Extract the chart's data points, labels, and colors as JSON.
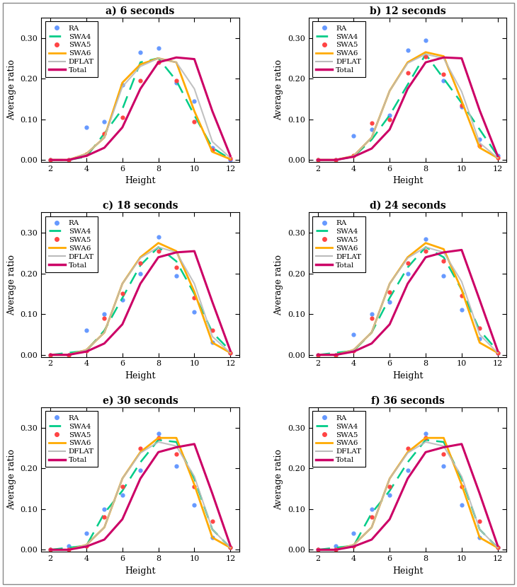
{
  "titles": [
    "a) 6 seconds",
    "b) 12 seconds",
    "c) 18 seconds",
    "d) 24 seconds",
    "e) 30 seconds",
    "f) 36 seconds"
  ],
  "x": [
    2,
    3,
    4,
    5,
    6,
    7,
    8,
    9,
    10,
    11,
    12
  ],
  "series": {
    "RA": {
      "color": "#6699ff",
      "data": [
        [
          0.0,
          0.0,
          0.08,
          0.095,
          0.185,
          0.265,
          0.275,
          0.19,
          0.145,
          0.03,
          0.0
        ],
        [
          0.0,
          0.0,
          0.06,
          0.075,
          0.11,
          0.27,
          0.295,
          0.195,
          0.13,
          0.05,
          0.01
        ],
        [
          0.0,
          0.0,
          0.06,
          0.1,
          0.135,
          0.2,
          0.29,
          0.195,
          0.105,
          0.03,
          0.005
        ],
        [
          0.0,
          0.0,
          0.05,
          0.1,
          0.13,
          0.2,
          0.285,
          0.195,
          0.11,
          0.04,
          0.005
        ],
        [
          0.0,
          0.01,
          0.04,
          0.1,
          0.135,
          0.195,
          0.285,
          0.205,
          0.11,
          0.03,
          0.005
        ],
        [
          0.0,
          0.01,
          0.04,
          0.1,
          0.135,
          0.195,
          0.285,
          0.205,
          0.11,
          0.03,
          0.005
        ]
      ]
    },
    "SWA4": {
      "color": "#00cc88",
      "data": [
        [
          0.0,
          0.0,
          0.008,
          0.065,
          0.125,
          0.24,
          0.25,
          0.195,
          0.11,
          0.03,
          0.002
        ],
        [
          0.0,
          0.0,
          0.008,
          0.05,
          0.11,
          0.185,
          0.26,
          0.2,
          0.14,
          0.075,
          0.01
        ],
        [
          0.0,
          0.005,
          0.01,
          0.06,
          0.14,
          0.22,
          0.265,
          0.23,
          0.15,
          0.055,
          0.01
        ],
        [
          0.0,
          0.005,
          0.01,
          0.055,
          0.14,
          0.215,
          0.265,
          0.24,
          0.16,
          0.06,
          0.01
        ],
        [
          0.0,
          0.005,
          0.01,
          0.09,
          0.145,
          0.215,
          0.27,
          0.265,
          0.175,
          0.05,
          0.005
        ],
        [
          0.0,
          0.005,
          0.01,
          0.09,
          0.145,
          0.215,
          0.27,
          0.265,
          0.175,
          0.05,
          0.005
        ]
      ]
    },
    "SWA5": {
      "color": "#ff4444",
      "data": [
        [
          0.0,
          0.0,
          0.015,
          0.065,
          0.105,
          0.195,
          0.24,
          0.195,
          0.095,
          0.025,
          0.003
        ],
        [
          0.0,
          0.0,
          0.01,
          0.09,
          0.1,
          0.215,
          0.255,
          0.21,
          0.135,
          0.035,
          0.005
        ],
        [
          0.0,
          0.0,
          0.01,
          0.09,
          0.15,
          0.225,
          0.255,
          0.215,
          0.14,
          0.06,
          0.005
        ],
        [
          0.0,
          0.0,
          0.01,
          0.09,
          0.155,
          0.225,
          0.255,
          0.23,
          0.145,
          0.065,
          0.005
        ],
        [
          0.0,
          0.0,
          0.01,
          0.08,
          0.155,
          0.25,
          0.275,
          0.235,
          0.155,
          0.07,
          0.005
        ],
        [
          0.0,
          0.0,
          0.01,
          0.08,
          0.155,
          0.25,
          0.275,
          0.235,
          0.155,
          0.07,
          0.005
        ]
      ]
    },
    "SWA6": {
      "color": "#ffaa00",
      "data": [
        [
          0.0,
          0.0,
          0.015,
          0.055,
          0.19,
          0.235,
          0.25,
          0.24,
          0.12,
          0.02,
          0.002
        ],
        [
          0.0,
          0.0,
          0.01,
          0.055,
          0.17,
          0.24,
          0.265,
          0.255,
          0.145,
          0.03,
          0.005
        ],
        [
          0.0,
          0.0,
          0.012,
          0.055,
          0.175,
          0.24,
          0.275,
          0.255,
          0.155,
          0.03,
          0.005
        ],
        [
          0.0,
          0.0,
          0.012,
          0.055,
          0.175,
          0.24,
          0.275,
          0.26,
          0.16,
          0.03,
          0.005
        ],
        [
          0.0,
          0.0,
          0.012,
          0.055,
          0.175,
          0.24,
          0.275,
          0.275,
          0.16,
          0.03,
          0.005
        ],
        [
          0.0,
          0.0,
          0.012,
          0.055,
          0.175,
          0.24,
          0.275,
          0.275,
          0.16,
          0.03,
          0.005
        ]
      ]
    },
    "DFLAT": {
      "color": "#bbbbbb",
      "data": [
        [
          0.0,
          0.0,
          0.015,
          0.055,
          0.18,
          0.23,
          0.25,
          0.24,
          0.175,
          0.045,
          0.005
        ],
        [
          0.0,
          0.0,
          0.01,
          0.055,
          0.17,
          0.238,
          0.26,
          0.25,
          0.168,
          0.042,
          0.005
        ],
        [
          0.0,
          0.0,
          0.012,
          0.055,
          0.175,
          0.238,
          0.265,
          0.252,
          0.175,
          0.045,
          0.005
        ],
        [
          0.0,
          0.0,
          0.012,
          0.055,
          0.175,
          0.238,
          0.265,
          0.252,
          0.18,
          0.05,
          0.005
        ],
        [
          0.0,
          0.0,
          0.012,
          0.055,
          0.175,
          0.238,
          0.265,
          0.255,
          0.18,
          0.05,
          0.005
        ],
        [
          0.0,
          0.0,
          0.012,
          0.055,
          0.175,
          0.238,
          0.265,
          0.255,
          0.18,
          0.05,
          0.005
        ]
      ]
    },
    "Total": {
      "color": "#cc0066",
      "data": [
        [
          0.0,
          0.0,
          0.01,
          0.03,
          0.08,
          0.175,
          0.24,
          0.252,
          0.248,
          0.12,
          0.01
        ],
        [
          0.0,
          0.0,
          0.008,
          0.028,
          0.075,
          0.175,
          0.24,
          0.252,
          0.25,
          0.122,
          0.01
        ],
        [
          0.0,
          0.0,
          0.008,
          0.028,
          0.075,
          0.175,
          0.24,
          0.252,
          0.255,
          0.13,
          0.01
        ],
        [
          0.0,
          0.0,
          0.008,
          0.028,
          0.075,
          0.175,
          0.24,
          0.252,
          0.258,
          0.135,
          0.01
        ],
        [
          0.0,
          0.0,
          0.008,
          0.025,
          0.075,
          0.175,
          0.24,
          0.252,
          0.26,
          0.138,
          0.01
        ],
        [
          0.0,
          0.0,
          0.008,
          0.025,
          0.075,
          0.175,
          0.24,
          0.252,
          0.26,
          0.138,
          0.01
        ]
      ]
    }
  },
  "xlabel": "Height",
  "ylabel": "Average ratio",
  "xlim": [
    1.5,
    12.5
  ],
  "ylim": [
    -0.005,
    0.35
  ],
  "yticks": [
    0.0,
    0.1,
    0.2,
    0.3
  ],
  "xticks": [
    2,
    4,
    6,
    8,
    10,
    12
  ],
  "bg_color": "#ffffff",
  "legend_entries": [
    "RA",
    "SWA4",
    "SWA5",
    "SWA6",
    "DFLAT",
    "Total"
  ]
}
